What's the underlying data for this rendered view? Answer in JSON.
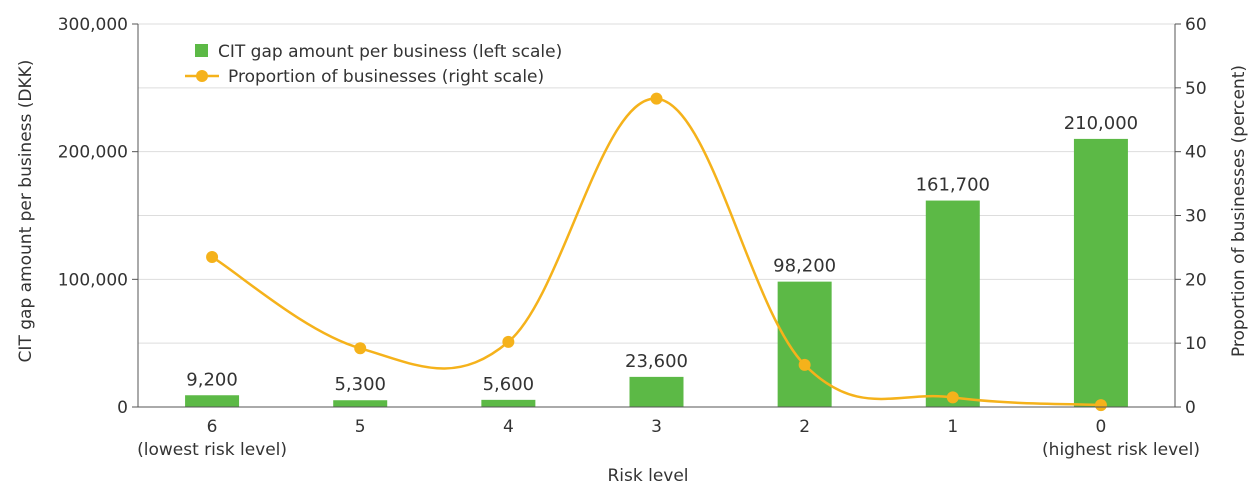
{
  "chart_data": {
    "type": "bar+line",
    "categories": [
      "6",
      "5",
      "4",
      "3",
      "2",
      "1",
      "0"
    ],
    "category_sublabels": [
      "(lowest risk level)",
      "",
      "",
      "",
      "",
      "",
      "(highest risk level)"
    ],
    "series": [
      {
        "name": "CIT gap amount per business (left scale)",
        "type": "bar",
        "axis": "left",
        "color": "#5cb946",
        "values": [
          9200,
          5300,
          5600,
          23600,
          98200,
          161700,
          210000
        ],
        "data_labels": [
          "9,200",
          "5,300",
          "5,600",
          "23,600",
          "98,200",
          "161,700",
          "210,000"
        ]
      },
      {
        "name": "Proportion of businesses (right scale)",
        "type": "line",
        "axis": "right",
        "color": "#f5b21b",
        "smooth": true,
        "values": [
          23.5,
          9.2,
          10.2,
          48.3,
          6.6,
          1.5,
          0.3
        ]
      }
    ],
    "xlabel": "Risk level",
    "ylabel_left": "CIT gap amount per business (DKK)",
    "ylabel_right": "Proportion of businesses (percent)",
    "ylim_left": [
      0,
      300000
    ],
    "ylim_right": [
      0,
      60
    ],
    "yticks_left": [
      "0",
      "100,000",
      "200,000",
      "300,000"
    ],
    "yticks_right": [
      "0",
      "10",
      "20",
      "30",
      "40",
      "50",
      "60"
    ],
    "grid": true,
    "legend_position": "top-left"
  }
}
